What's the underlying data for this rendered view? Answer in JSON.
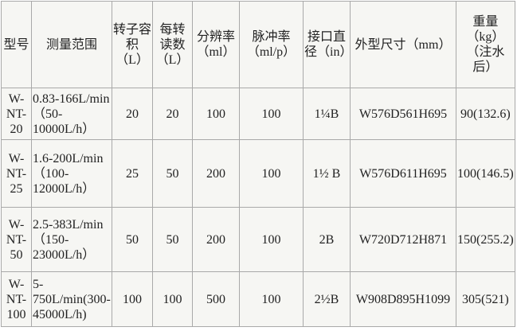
{
  "headers": [
    "型号",
    "测量范围",
    "转子容积（L）",
    "每转读数（L）",
    "分辨率（ml）",
    "脉冲率（ml/p）",
    "接口直径（in）",
    "外型尺寸（mm）",
    "重量（kg）（注水后）"
  ],
  "rows": [
    [
      "W-NT-20",
      "0.83-166L/min（50-10000L/h）",
      "20",
      "20",
      "100",
      "100",
      "1¼B",
      "W576D561H695",
      "90(132.6)"
    ],
    [
      "W-NT-25",
      "1.6-200L/min（100-12000L/h）",
      "25",
      "50",
      "200",
      "100",
      "1½ B",
      "W576D611H695",
      "100(146.5)"
    ],
    [
      "W-NT-50",
      "2.5-383L/min（150-23000L/h）",
      "50",
      "50",
      "200",
      "100",
      "2B",
      "W720D712H871",
      "150(255.2)"
    ],
    [
      "W-NT-100",
      "5-750L/min(300-45000L/h)",
      "100",
      "100",
      "500",
      "100",
      "2½B",
      "W908D895H1099",
      "305(521)"
    ]
  ]
}
